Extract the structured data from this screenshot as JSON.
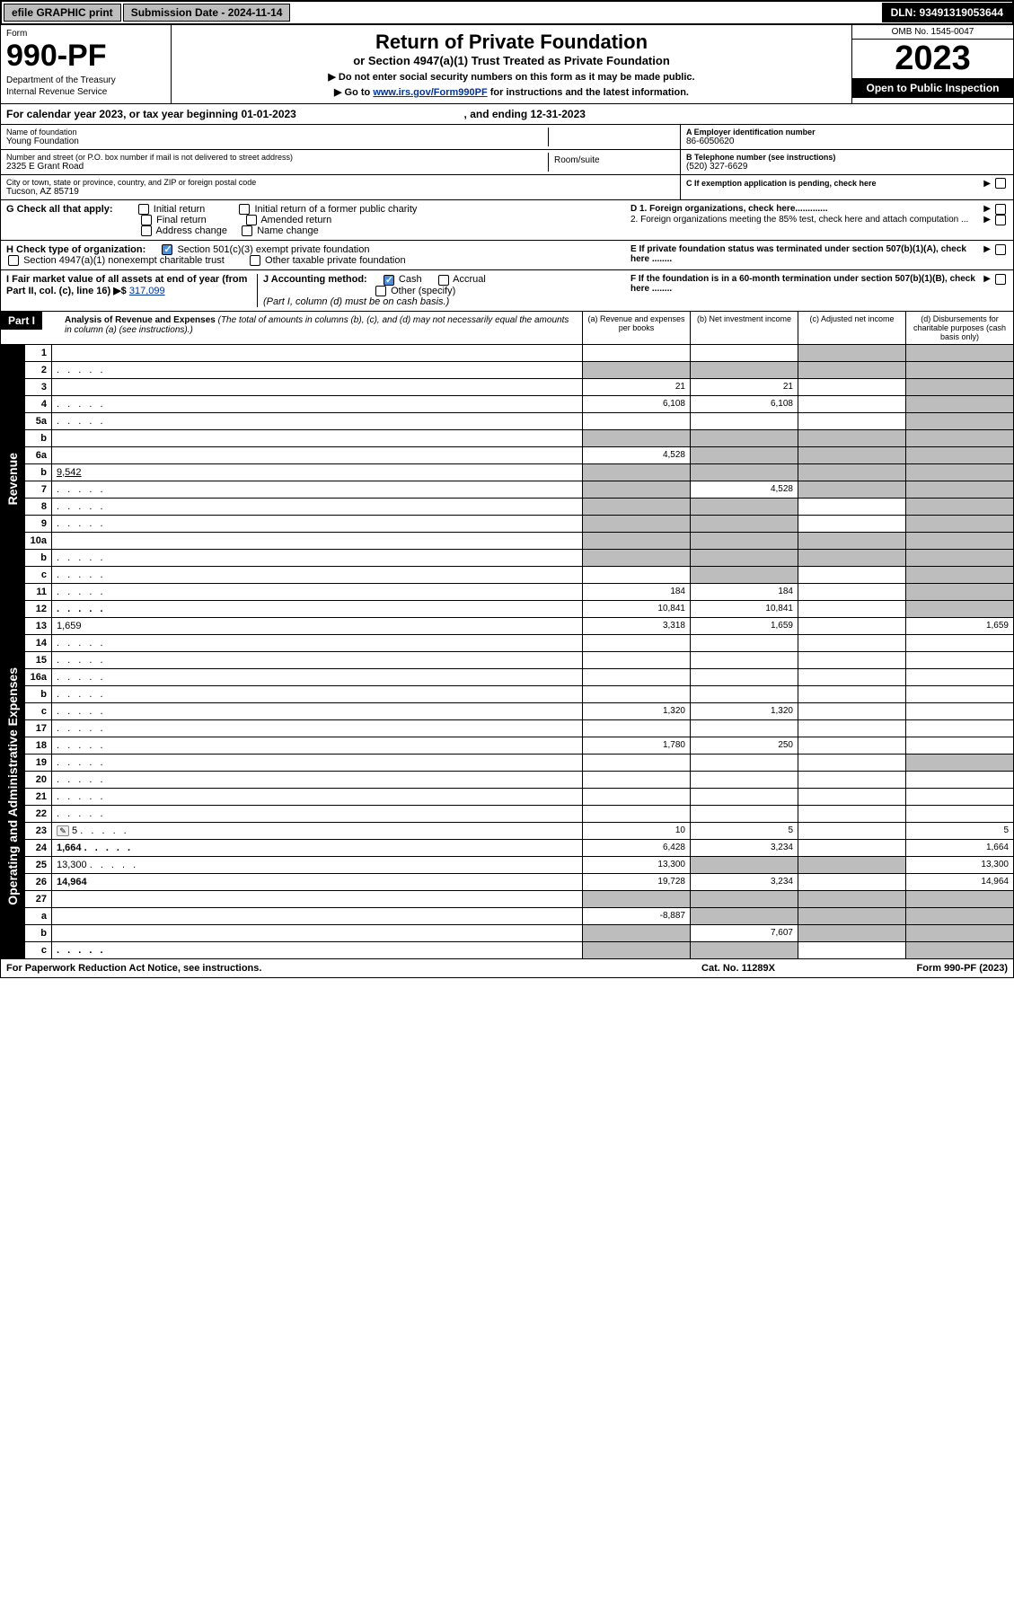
{
  "topbar": {
    "efile": "efile GRAPHIC print",
    "submission_label": "Submission Date - 2024-11-14",
    "dln": "DLN: 93491319053644"
  },
  "header": {
    "form_word": "Form",
    "form_no": "990-PF",
    "dept": "Department of the Treasury",
    "irs": "Internal Revenue Service",
    "title": "Return of Private Foundation",
    "subtitle": "or Section 4947(a)(1) Trust Treated as Private Foundation",
    "instr1": "▶ Do not enter social security numbers on this form as it may be made public.",
    "instr2_pre": "▶ Go to ",
    "instr2_link": "www.irs.gov/Form990PF",
    "instr2_post": " for instructions and the latest information.",
    "omb": "OMB No. 1545-0047",
    "year": "2023",
    "open": "Open to Public Inspection"
  },
  "cal_year": {
    "pre": "For calendar year 2023, or tax year beginning ",
    "begin": "01-01-2023",
    "mid": " , and ending ",
    "end": "12-31-2023"
  },
  "entity": {
    "name_label": "Name of foundation",
    "name": "Young Foundation",
    "addr_label": "Number and street (or P.O. box number if mail is not delivered to street address)",
    "addr": "2325 E Grant Road",
    "room_label": "Room/suite",
    "city_label": "City or town, state or province, country, and ZIP or foreign postal code",
    "city": "Tucson, AZ  85719",
    "a_label": "A Employer identification number",
    "a_val": "86-6050620",
    "b_label": "B Telephone number (see instructions)",
    "b_val": "(520) 327-6629",
    "c_label": "C If exemption application is pending, check here",
    "d1": "D 1. Foreign organizations, check here.............",
    "d2": "2. Foreign organizations meeting the 85% test, check here and attach computation ...",
    "e": "E  If private foundation status was terminated under section 507(b)(1)(A), check here ........",
    "f": "F  If the foundation is in a 60-month termination under section 507(b)(1)(B), check here ........"
  },
  "check_g": {
    "label": "G Check all that apply:",
    "opts": [
      "Initial return",
      "Final return",
      "Address change",
      "Initial return of a former public charity",
      "Amended return",
      "Name change"
    ]
  },
  "check_h": {
    "label": "H Check type of organization:",
    "opt1": "Section 501(c)(3) exempt private foundation",
    "opt2": "Section 4947(a)(1) nonexempt charitable trust",
    "opt3": "Other taxable private foundation"
  },
  "check_i": {
    "label": "I Fair market value of all assets at end of year (from Part II, col. (c), line 16) ▶$",
    "val": "317,099"
  },
  "check_j": {
    "label": "J Accounting method:",
    "opts": [
      "Cash",
      "Accrual",
      "Other (specify)"
    ],
    "note": "(Part I, column (d) must be on cash basis.)"
  },
  "part1": {
    "label": "Part I",
    "title": "Analysis of Revenue and Expenses",
    "sub": " (The total of amounts in columns (b), (c), and (d) may not necessarily equal the amounts in column (a) (see instructions).)",
    "cols": {
      "a": "(a) Revenue and expenses per books",
      "b": "(b) Net investment income",
      "c": "(c) Adjusted net income",
      "d": "(d) Disbursements for charitable purposes (cash basis only)"
    }
  },
  "sections": {
    "revenue": "Revenue",
    "opexp": "Operating and Administrative Expenses"
  },
  "rows": [
    {
      "n": "1",
      "d": "",
      "a": "",
      "b": "",
      "c": "",
      "shade_cd": true
    },
    {
      "n": "2",
      "d": "",
      "dots": true,
      "a": "",
      "b": "",
      "c": "",
      "shade_cd": true,
      "shade_all": true
    },
    {
      "n": "3",
      "d": "",
      "a": "21",
      "b": "21",
      "c": "",
      "shade_d": true
    },
    {
      "n": "4",
      "d": "",
      "dots": true,
      "a": "6,108",
      "b": "6,108",
      "c": "",
      "shade_d": true
    },
    {
      "n": "5a",
      "d": "",
      "dots": true,
      "a": "",
      "b": "",
      "c": "",
      "shade_d": true
    },
    {
      "n": "b",
      "d": "",
      "a": "",
      "b": "",
      "c": "",
      "shade_all": true
    },
    {
      "n": "6a",
      "d": "",
      "a": "4,528",
      "b": "",
      "c": "",
      "shade_bcd": true
    },
    {
      "n": "b",
      "d": "",
      "extra": "9,542",
      "a": "",
      "b": "",
      "c": "",
      "shade_all": true
    },
    {
      "n": "7",
      "d": "",
      "dots": true,
      "a": "",
      "b": "4,528",
      "c": "",
      "shade_a": true,
      "shade_cd": true
    },
    {
      "n": "8",
      "d": "",
      "dots": true,
      "a": "",
      "b": "",
      "c": "",
      "shade_ab": true,
      "shade_d": true
    },
    {
      "n": "9",
      "d": "",
      "dots": true,
      "a": "",
      "b": "",
      "c": "",
      "shade_ab": true,
      "shade_d": true
    },
    {
      "n": "10a",
      "d": "",
      "a": "",
      "b": "",
      "c": "",
      "shade_all": true
    },
    {
      "n": "b",
      "d": "",
      "dots": true,
      "a": "",
      "b": "",
      "c": "",
      "shade_all": true
    },
    {
      "n": "c",
      "d": "",
      "dots": true,
      "a": "",
      "b": "",
      "c": "",
      "shade_b": true,
      "shade_d": true
    },
    {
      "n": "11",
      "d": "",
      "dots": true,
      "a": "184",
      "b": "184",
      "c": "",
      "shade_d": true
    },
    {
      "n": "12",
      "d": "",
      "dots": true,
      "bold": true,
      "a": "10,841",
      "b": "10,841",
      "c": "",
      "shade_d": true
    },
    {
      "n": "13",
      "d": "1,659",
      "a": "3,318",
      "b": "1,659",
      "c": ""
    },
    {
      "n": "14",
      "d": "",
      "dots": true,
      "a": "",
      "b": "",
      "c": ""
    },
    {
      "n": "15",
      "d": "",
      "dots": true,
      "a": "",
      "b": "",
      "c": ""
    },
    {
      "n": "16a",
      "d": "",
      "dots": true,
      "a": "",
      "b": "",
      "c": ""
    },
    {
      "n": "b",
      "d": "",
      "dots": true,
      "a": "",
      "b": "",
      "c": ""
    },
    {
      "n": "c",
      "d": "",
      "dots": true,
      "a": "1,320",
      "b": "1,320",
      "c": ""
    },
    {
      "n": "17",
      "d": "",
      "dots": true,
      "a": "",
      "b": "",
      "c": ""
    },
    {
      "n": "18",
      "d": "",
      "dots": true,
      "a": "1,780",
      "b": "250",
      "c": ""
    },
    {
      "n": "19",
      "d": "",
      "dots": true,
      "a": "",
      "b": "",
      "c": "",
      "shade_d": true
    },
    {
      "n": "20",
      "d": "",
      "dots": true,
      "a": "",
      "b": "",
      "c": ""
    },
    {
      "n": "21",
      "d": "",
      "dots": true,
      "a": "",
      "b": "",
      "c": ""
    },
    {
      "n": "22",
      "d": "",
      "dots": true,
      "a": "",
      "b": "",
      "c": ""
    },
    {
      "n": "23",
      "d": "5",
      "dots": true,
      "icon": true,
      "a": "10",
      "b": "5",
      "c": ""
    },
    {
      "n": "24",
      "d": "1,664",
      "dots": true,
      "bold": true,
      "a": "6,428",
      "b": "3,234",
      "c": ""
    },
    {
      "n": "25",
      "d": "13,300",
      "dots": true,
      "a": "13,300",
      "b": "",
      "c": "",
      "shade_bc": true
    },
    {
      "n": "26",
      "d": "14,964",
      "bold": true,
      "a": "19,728",
      "b": "3,234",
      "c": ""
    },
    {
      "n": "27",
      "d": "",
      "a": "",
      "b": "",
      "c": "",
      "shade_all": true
    },
    {
      "n": "a",
      "d": "",
      "bold": true,
      "a": "-8,887",
      "b": "",
      "c": "",
      "shade_bcd": true
    },
    {
      "n": "b",
      "d": "",
      "bold": true,
      "a": "",
      "b": "7,607",
      "c": "",
      "shade_a": true,
      "shade_cd": true
    },
    {
      "n": "c",
      "d": "",
      "dots": true,
      "bold": true,
      "a": "",
      "b": "",
      "c": "",
      "shade_ab": true,
      "shade_d": true
    }
  ],
  "footer": {
    "left": "For Paperwork Reduction Act Notice, see instructions.",
    "mid": "Cat. No. 11289X",
    "right": "Form 990-PF (2023)"
  },
  "colors": {
    "shade": "#bdbdbd",
    "black": "#000000",
    "link": "#003399",
    "check": "#4a90d9"
  }
}
